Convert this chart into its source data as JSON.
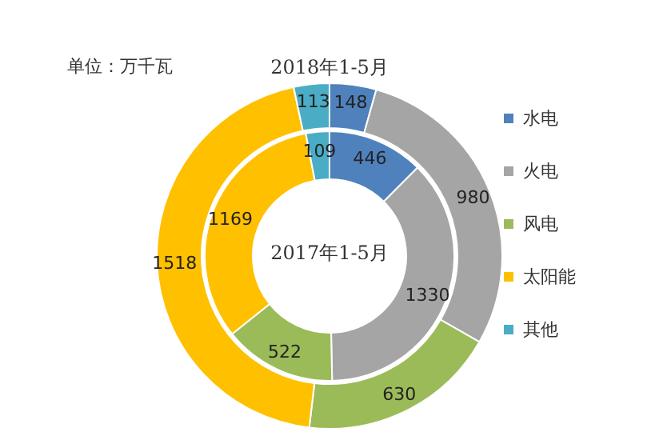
{
  "chart_data": {
    "type": "donut",
    "categories": [
      "水电",
      "火电",
      "风电",
      "太阳能",
      "其他"
    ],
    "colors": [
      "#4f81bd",
      "#a5a5a5",
      "#9bbb59",
      "#ffc000",
      "#4bacc6"
    ],
    "series": [
      {
        "name": "2018年1-5月",
        "values": [
          148,
          980,
          630,
          1518,
          113
        ]
      },
      {
        "name": "2017年1-5月",
        "values": [
          446,
          1330,
          522,
          1169,
          109
        ]
      }
    ],
    "annotations": [
      "单位：万千瓦"
    ],
    "data_labels": true,
    "legend": "right"
  }
}
